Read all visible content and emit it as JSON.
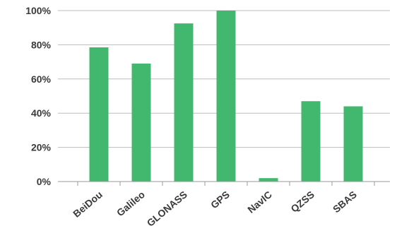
{
  "chart_data": {
    "type": "bar",
    "title": "",
    "xlabel": "",
    "ylabel": "",
    "categories": [
      "BeiDou",
      "Galileo",
      "GLONASS",
      "GPS",
      "NavIC",
      "QZSS",
      "SBAS"
    ],
    "values": [
      78.5,
      69,
      92.5,
      100,
      2,
      47,
      44
    ],
    "ylim": [
      0,
      100
    ],
    "yticks": [
      0,
      20,
      40,
      60,
      80,
      100
    ],
    "ytick_labels": [
      "0%",
      "20%",
      "40%",
      "60%",
      "80%",
      "100%"
    ],
    "grid": true,
    "legend": "none",
    "bar_color": "#41b86e"
  }
}
